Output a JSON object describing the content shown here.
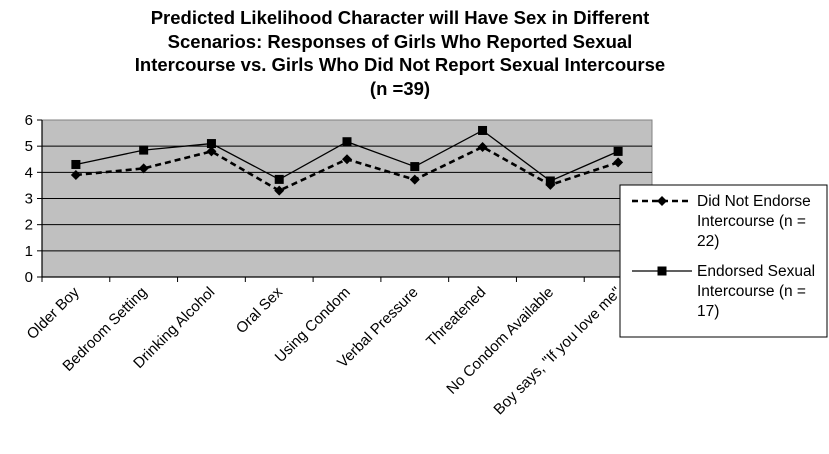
{
  "chart_data": {
    "type": "line",
    "title_lines": [
      "Predicted Likelihood Character will Have Sex in Different",
      "Scenarios:  Responses of Girls Who Reported Sexual",
      "Intercourse vs. Girls Who Did Not Report Sexual Intercourse",
      "(n =39)"
    ],
    "categories": [
      "Older Boy",
      "Bedroom Setting",
      "Drinking Alcohol",
      "Oral Sex",
      "Using Condom",
      "Verbal Pressure",
      "Threatened",
      "No Condom Available",
      "Boy says, \"If you love me\""
    ],
    "ylim": [
      0,
      6
    ],
    "yticks": [
      0,
      1,
      2,
      3,
      4,
      5,
      6
    ],
    "grid": true,
    "legend_position": "right",
    "plot_background": "#c0c0c0",
    "series": [
      {
        "name_lines": [
          "Did Not Endorse",
          "Intercourse (n =",
          "22)"
        ],
        "values": [
          3.9,
          4.15,
          4.8,
          3.3,
          4.5,
          3.72,
          4.97,
          3.52,
          4.38
        ],
        "line_style": "dashed",
        "marker": "diamond",
        "color": "#000000"
      },
      {
        "name_lines": [
          "Endorsed Sexual",
          "Intercourse (n =",
          "17)"
        ],
        "values": [
          4.3,
          4.85,
          5.1,
          3.73,
          5.17,
          4.22,
          5.6,
          3.67,
          4.8
        ],
        "line_style": "solid",
        "marker": "square",
        "color": "#000000"
      }
    ]
  }
}
